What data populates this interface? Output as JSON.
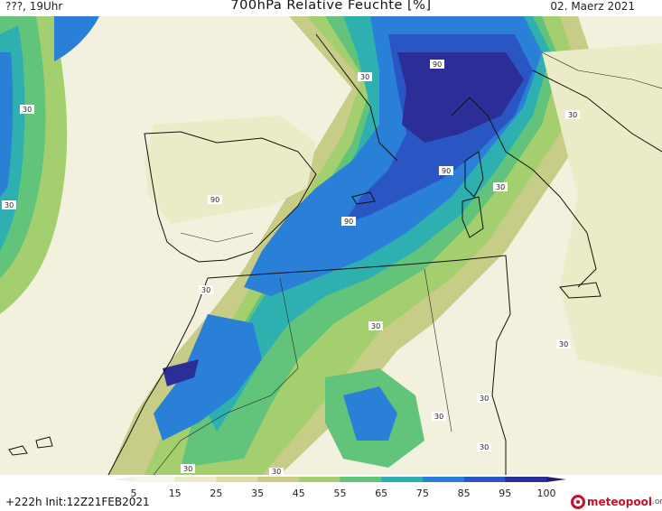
{
  "header": {
    "location_time": "???, 19Uhr",
    "title": "700hPa Relative Feuchte [%]",
    "date": "02. Maerz 2021"
  },
  "colorbar": {
    "ticks": [
      "5",
      "15",
      "25",
      "35",
      "45",
      "55",
      "65",
      "75",
      "85",
      "95",
      "100"
    ],
    "colors": [
      "#f6f5ea",
      "#ecebc8",
      "#dcdba4",
      "#c7cc86",
      "#a3cf6e",
      "#62c47b",
      "#2fb0b0",
      "#2a80d6",
      "#2a56c4",
      "#2b2e96",
      "#2a1a6e"
    ]
  },
  "footer": {
    "forecast": "+222h  Init:12Z21FEB2021",
    "brand": "meteopool",
    "brand_suffix": ".org"
  },
  "contour_labels": [
    "30",
    "90",
    "90",
    "30",
    "30",
    "30",
    "30",
    "90",
    "90",
    "30",
    "30",
    "30",
    "30",
    "30",
    "30",
    "30",
    "30"
  ]
}
